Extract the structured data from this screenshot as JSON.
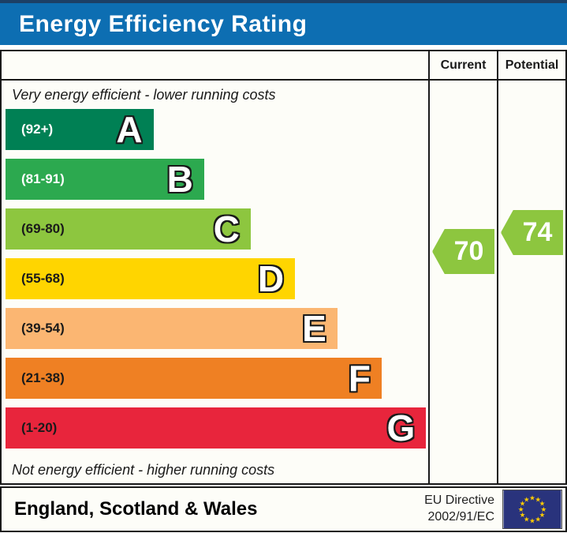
{
  "title": "Energy Efficiency Rating",
  "table": {
    "columns": {
      "current": "Current",
      "potential": "Potential"
    },
    "top_note": "Very energy efficient - lower running costs",
    "bottom_note": "Not energy efficient - higher running costs"
  },
  "chart_data": {
    "type": "bar",
    "title": "Energy Efficiency Rating",
    "bands": [
      {
        "letter": "A",
        "range_label": "(92+)",
        "min": 92,
        "max": 100,
        "color": "#008054",
        "text_color": "#ffffff",
        "width_pct": 35
      },
      {
        "letter": "B",
        "range_label": "(81-91)",
        "min": 81,
        "max": 91,
        "color": "#2ca94f",
        "text_color": "#ffffff",
        "width_pct": 47
      },
      {
        "letter": "C",
        "range_label": "(69-80)",
        "min": 69,
        "max": 80,
        "color": "#8dc63f",
        "text_color": "#1a1a1a",
        "width_pct": 58
      },
      {
        "letter": "D",
        "range_label": "(55-68)",
        "min": 55,
        "max": 68,
        "color": "#ffd500",
        "text_color": "#1a1a1a",
        "width_pct": 68.5
      },
      {
        "letter": "E",
        "range_label": "(39-54)",
        "min": 39,
        "max": 54,
        "color": "#fbb672",
        "text_color": "#1a1a1a",
        "width_pct": 78.5
      },
      {
        "letter": "F",
        "range_label": "(21-38)",
        "min": 21,
        "max": 38,
        "color": "#ef8023",
        "text_color": "#1a1a1a",
        "width_pct": 89
      },
      {
        "letter": "G",
        "range_label": "(1-20)",
        "min": 1,
        "max": 20,
        "color": "#e8253c",
        "text_color": "#1a1a1a",
        "width_pct": 99.5
      }
    ],
    "current": {
      "value": 70,
      "band": "C",
      "color": "#8dc63f"
    },
    "potential": {
      "value": 74,
      "band": "C",
      "color": "#8dc63f"
    }
  },
  "footer": {
    "region": "England, Scotland & Wales",
    "directive_line1": "EU Directive",
    "directive_line2": "2002/91/EC",
    "flag_icon": "eu-flag",
    "flag_colors": {
      "background": "#29337c",
      "stars": "#ffcc00"
    }
  }
}
